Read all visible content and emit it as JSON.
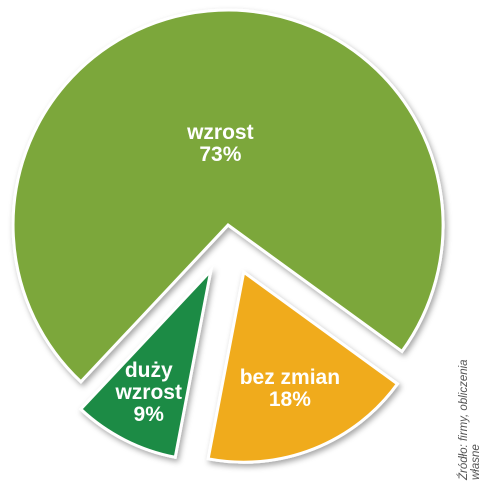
{
  "chart_data": {
    "type": "pie",
    "categories": [
      "wzrost",
      "bez zmian",
      "duży wzrost"
    ],
    "values": [
      73,
      18,
      9
    ],
    "value_labels": [
      "73%",
      "18%",
      "9%"
    ],
    "colors": [
      "#7ba73a",
      "#f0ab1f",
      "#1e8b45"
    ],
    "source": "Źródło: firmy, obliczenia własne"
  }
}
